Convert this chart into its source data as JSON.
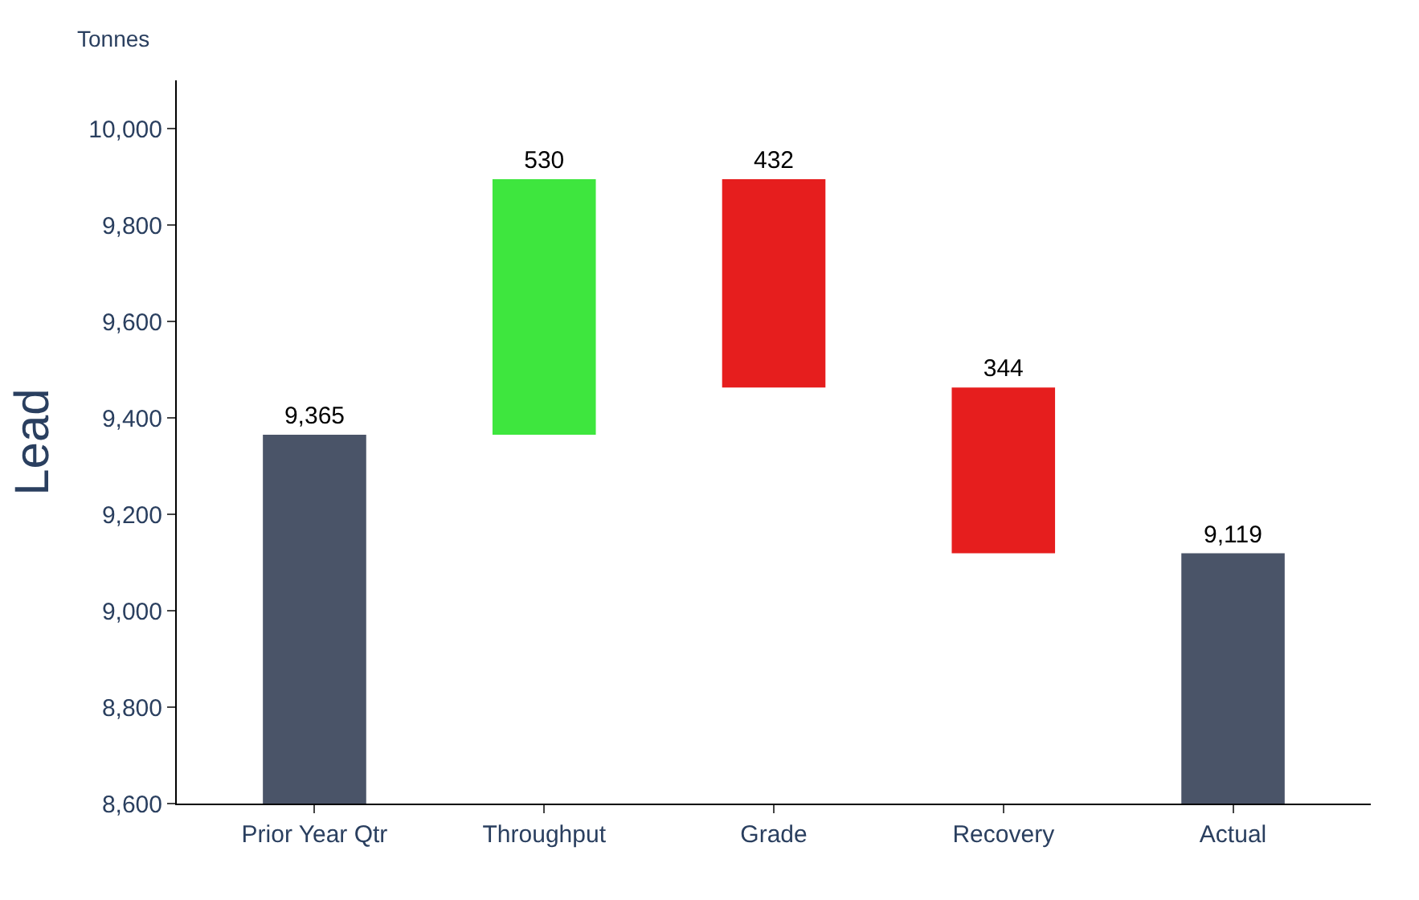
{
  "chart_data": {
    "type": "bar",
    "ylabel": "Lead",
    "annotations": [
      "Tonnes"
    ],
    "categories": [
      "Prior Year Qtr",
      "Throughput",
      "Grade",
      "Recovery",
      "Actual"
    ],
    "values": [
      765,
      530,
      432,
      344,
      519
    ],
    "base": [
      8600,
      9365,
      9463,
      9119,
      8600
    ],
    "colors": [
      "#4a5468",
      "#3ee63e",
      "#e61e1e",
      "#e61e1e",
      "#4a5468"
    ],
    "value_labels": [
      "9,365",
      "530",
      "432",
      "344",
      "9,119"
    ],
    "ylim": [
      8600,
      10100
    ],
    "yticks": [
      {
        "value": 8600,
        "label": "8,600"
      },
      {
        "value": 8800,
        "label": "8,800"
      },
      {
        "value": 9000,
        "label": "9,000"
      },
      {
        "value": 9200,
        "label": "9,200"
      },
      {
        "value": 9400,
        "label": "9,400"
      },
      {
        "value": 9600,
        "label": "9,600"
      },
      {
        "value": 9800,
        "label": "9,800"
      },
      {
        "value": 10000,
        "label": "10,000"
      }
    ]
  }
}
